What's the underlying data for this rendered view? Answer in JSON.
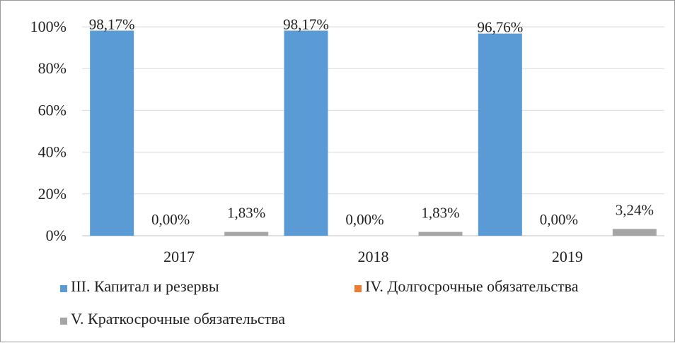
{
  "chart_data": {
    "type": "bar",
    "categories": [
      "2017",
      "2018",
      "2019"
    ],
    "series": [
      {
        "name": "III. Капитал и резервы",
        "values": [
          98.17,
          98.17,
          96.76
        ],
        "labels": [
          "98,17%",
          "98,17%",
          "96,76%"
        ],
        "color": "#5b9bd5"
      },
      {
        "name": "IV. Долгосрочные обязательства",
        "values": [
          0,
          0,
          0
        ],
        "labels": [
          "0,00%",
          "0,00%",
          "0,00%"
        ],
        "color": "#ed7d31"
      },
      {
        "name": "V. Краткосрочные обязательства",
        "values": [
          1.83,
          1.83,
          3.24
        ],
        "labels": [
          "1,83%",
          "1,83%",
          "3,24%"
        ],
        "color": "#a5a5a5"
      }
    ],
    "y_ticks": [
      0,
      20,
      40,
      60,
      80,
      100
    ],
    "y_tick_labels": [
      "0%",
      "20%",
      "40%",
      "60%",
      "80%",
      "100%"
    ],
    "ylim": [
      0,
      100
    ],
    "grid": true,
    "legend_position": "bottom"
  }
}
